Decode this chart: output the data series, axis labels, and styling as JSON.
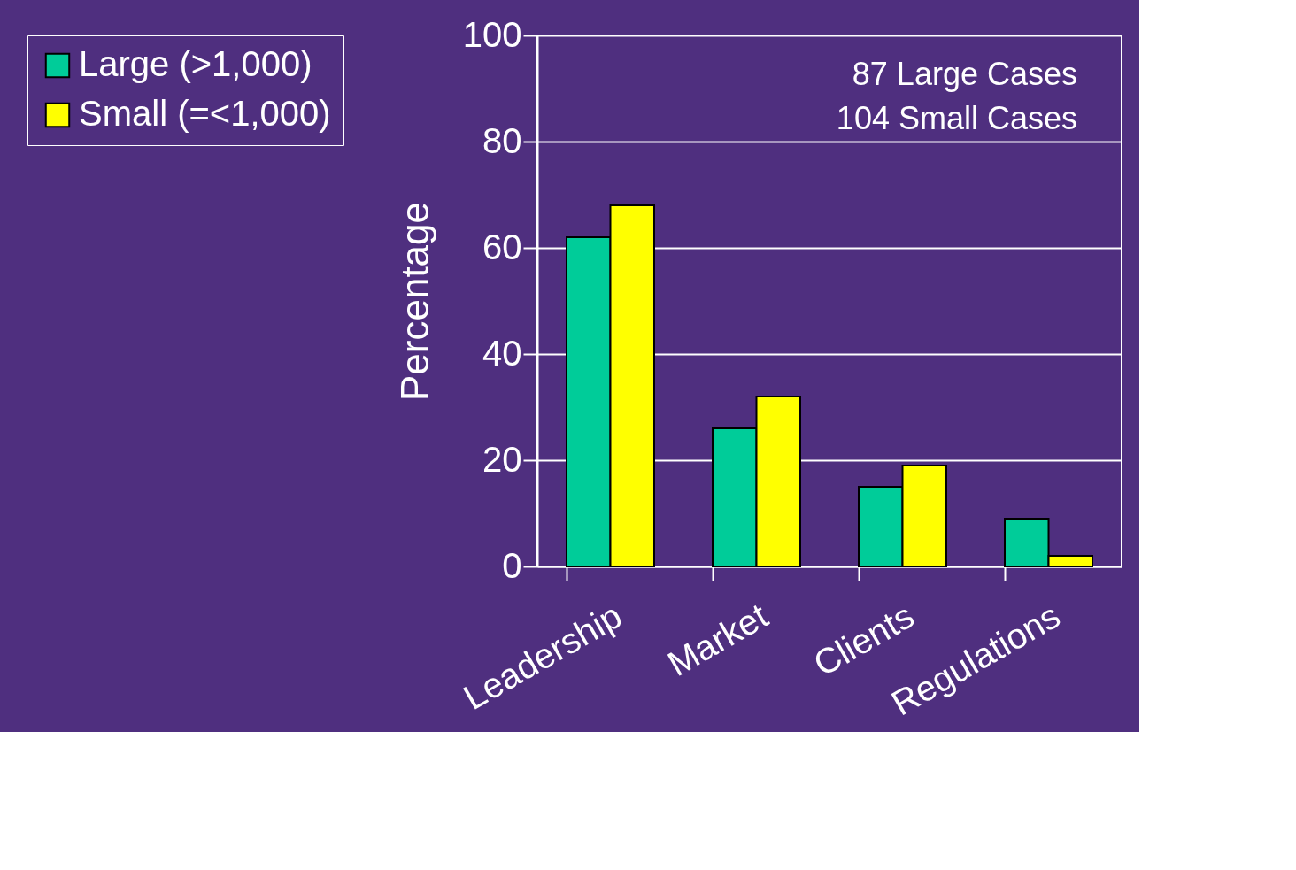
{
  "chart_data": {
    "type": "bar",
    "ylabel": "Percentage",
    "categories": [
      "Leadership",
      "Market",
      "Clients",
      "Regulations"
    ],
    "series": [
      {
        "name": "Large (>1,000)",
        "color": "#00cc99",
        "values": [
          62,
          26,
          15,
          9
        ]
      },
      {
        "name": "Small (=<1,000)",
        "color": "#ffff00",
        "values": [
          68,
          32,
          19,
          2
        ]
      }
    ],
    "ylim": [
      0,
      100
    ],
    "yticks": [
      0,
      20,
      40,
      60,
      80,
      100
    ],
    "grid": "y",
    "legend": "left",
    "annotations": [
      "87 Large Cases",
      "104 Small Cases"
    ]
  }
}
